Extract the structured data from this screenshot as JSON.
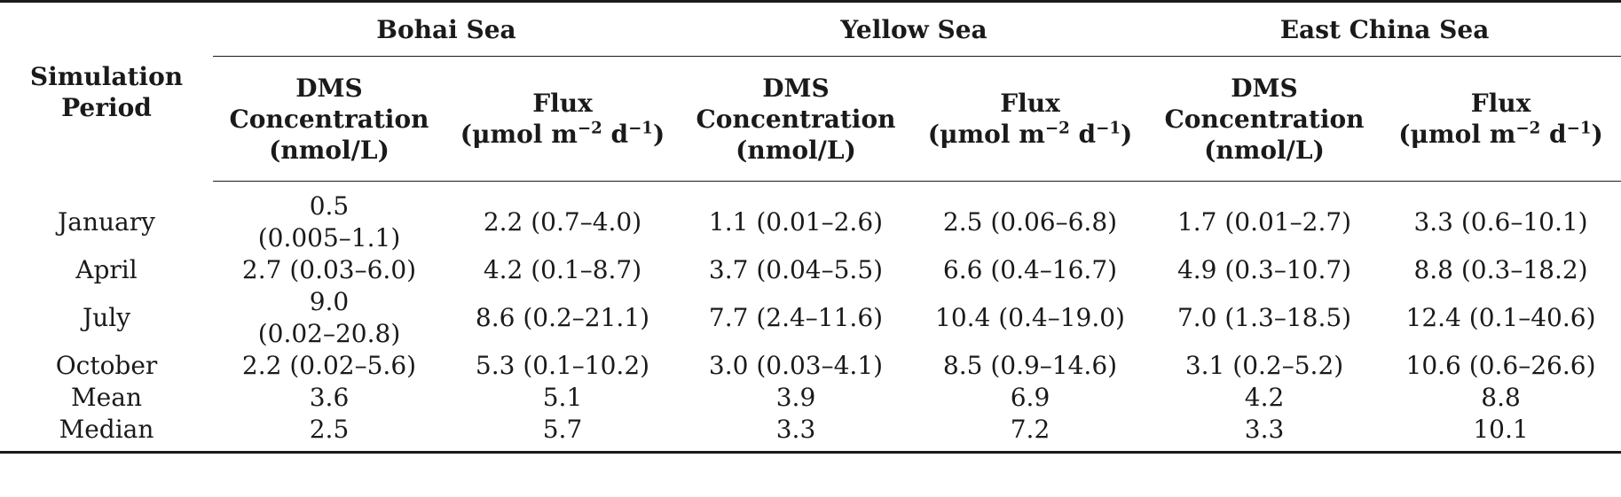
{
  "table": {
    "period_header": "Simulation\nPeriod",
    "groups": [
      "Bohai Sea",
      "Yellow Sea",
      "East China Sea"
    ],
    "subheaders": {
      "concentration": "DMS\nConcentration\n(nmol/L)",
      "flux_label": "Flux",
      "flux_unit_prefix": "(μmol m",
      "flux_exp1": "−2",
      "flux_unit_mid": " d",
      "flux_exp2": "−1",
      "flux_unit_suffix": ")"
    },
    "rows": [
      {
        "period": "January",
        "cells": [
          "0.5\n(0.005–1.1)",
          "2.2 (0.7–4.0)",
          "1.1 (0.01–2.6)",
          "2.5 (0.06–6.8)",
          "1.7 (0.01–2.7)",
          "3.3 (0.6–10.1)"
        ]
      },
      {
        "period": "April",
        "cells": [
          "2.7 (0.03–6.0)",
          "4.2 (0.1–8.7)",
          "3.7 (0.04–5.5)",
          "6.6 (0.4–16.7)",
          "4.9 (0.3–10.7)",
          "8.8 (0.3–18.2)"
        ]
      },
      {
        "period": "July",
        "cells": [
          "9.0\n(0.02–20.8)",
          "8.6 (0.2–21.1)",
          "7.7 (2.4–11.6)",
          "10.4 (0.4–19.0)",
          "7.0 (1.3–18.5)",
          "12.4 (0.1–40.6)"
        ]
      },
      {
        "period": "October",
        "cells": [
          "2.2 (0.02–5.6)",
          "5.3 (0.1–10.2)",
          "3.0 (0.03–4.1)",
          "8.5 (0.9–14.6)",
          "3.1 (0.2–5.2)",
          "10.6 (0.6–26.6)"
        ]
      },
      {
        "period": "Mean",
        "cells": [
          "3.6",
          "5.1",
          "3.9",
          "6.9",
          "4.2",
          "8.8"
        ]
      },
      {
        "period": "Median",
        "cells": [
          "2.5",
          "5.7",
          "3.3",
          "7.2",
          "3.3",
          "10.1"
        ]
      }
    ]
  }
}
